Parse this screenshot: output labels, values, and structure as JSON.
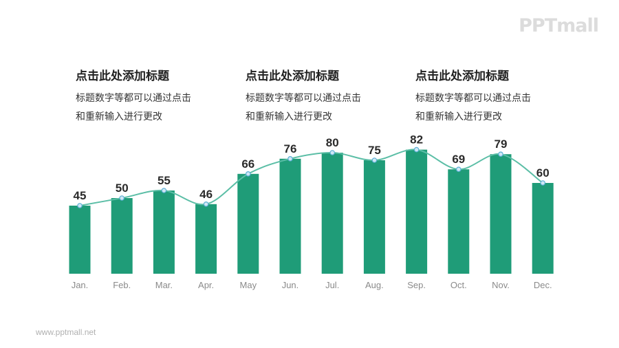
{
  "brand": {
    "logo_text": "PPTmall",
    "footer_url": "www.pptmall.net"
  },
  "text_blocks": [
    {
      "title": "点击此处添加标题",
      "body": "标题数字等都可以通过点击和重新输入进行更改"
    },
    {
      "title": "点击此处添加标题",
      "body": "标题数字等都可以通过点击和重新输入进行更改"
    },
    {
      "title": "点击此处添加标题",
      "body": "标题数字等都可以通过点击和重新输入进行更改"
    }
  ],
  "chart_data": {
    "type": "bar",
    "categories": [
      "Jan.",
      "Feb.",
      "Mar.",
      "Apr.",
      "May",
      "Jun.",
      "Jul.",
      "Aug.",
      "Sep.",
      "Oct.",
      "Nov.",
      "Dec."
    ],
    "series": [
      {
        "type": "bar",
        "values": [
          45,
          50,
          55,
          46,
          66,
          76,
          80,
          75,
          82,
          69,
          79,
          60
        ]
      },
      {
        "type": "line",
        "smooth": true,
        "values": [
          45,
          50,
          55,
          46,
          66,
          76,
          80,
          75,
          82,
          69,
          79,
          60
        ]
      }
    ],
    "data_labels": true,
    "ylim": [
      0,
      100
    ],
    "grid": false,
    "legend": "none",
    "colors": {
      "bar": "#1f9c78",
      "line": "#5bbea6",
      "marker": "#cfe7f5",
      "marker_stroke": "#5aaed4",
      "label": "#2a2a2a",
      "tick": "#8a8a8a"
    }
  }
}
